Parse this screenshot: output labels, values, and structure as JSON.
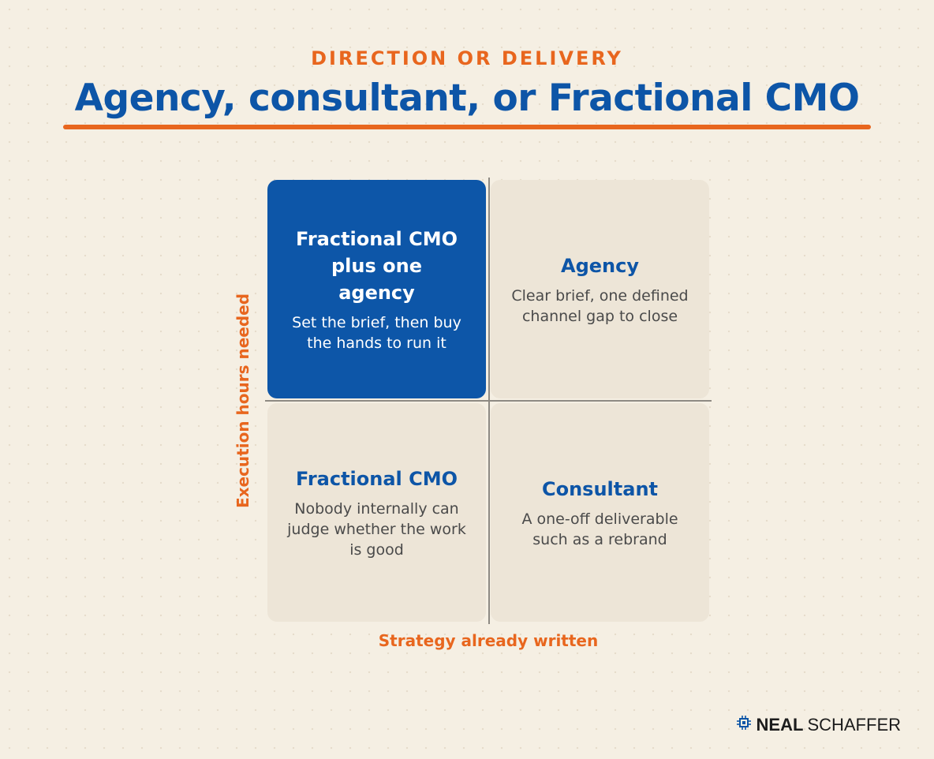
{
  "header": {
    "eyebrow": "DIRECTION OR DELIVERY",
    "title": "Agency, consultant, or Fractional CMO"
  },
  "axes": {
    "y_label": "Execution hours needed",
    "x_label": "Strategy already written"
  },
  "quadrants": [
    {
      "position": "top-left",
      "title": "Fractional CMO plus one agency",
      "description": "Set the brief, then buy the hands to run it",
      "highlighted": true
    },
    {
      "position": "top-right",
      "title": "Agency",
      "description": "Clear brief, one defined channel gap to close",
      "highlighted": false
    },
    {
      "position": "bottom-left",
      "title": "Fractional CMO",
      "description": "Nobody internally can judge whether the work is good",
      "highlighted": false
    },
    {
      "position": "bottom-right",
      "title": "Consultant",
      "description": "A one-off deliverable such as a rebrand",
      "highlighted": false
    }
  ],
  "brand": {
    "name_bold": "NEAL",
    "name_regular": "SCHAFFER",
    "icon": "chip-icon"
  },
  "colors": {
    "accent": "#e8661e",
    "primary": "#0d55a7",
    "background": "#f5efe3",
    "cell": "#ede5d7"
  }
}
